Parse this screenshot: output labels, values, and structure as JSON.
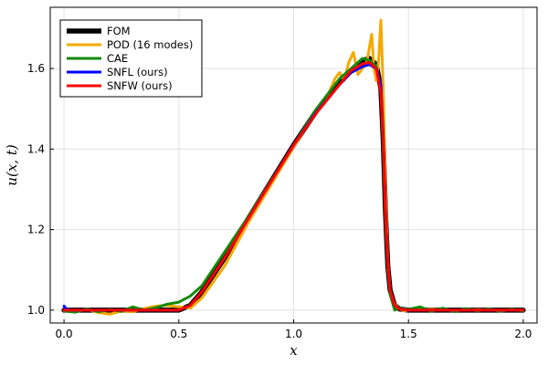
{
  "chart_data": {
    "type": "line",
    "xlabel": "x",
    "ylabel": "u(x, t)",
    "xlim": [
      -0.06,
      2.06
    ],
    "ylim": [
      0.968,
      1.752
    ],
    "xticks": [
      "0.0",
      "0.5",
      "1.0",
      "1.5",
      "2.0"
    ],
    "xtick_values": [
      0,
      0.5,
      1,
      1.5,
      2
    ],
    "yticks": [
      "1.0",
      "1.2",
      "1.4",
      "1.6"
    ],
    "ytick_values": [
      1.0,
      1.2,
      1.4,
      1.6
    ],
    "grid": true,
    "legend_position": "top-left",
    "series": [
      {
        "name": "FOM",
        "color": "#000000",
        "x": [
          0.0,
          0.5,
          0.55,
          0.6,
          0.7,
          0.8,
          0.9,
          1.0,
          1.1,
          1.2,
          1.25,
          1.3,
          1.33,
          1.36,
          1.38,
          1.39,
          1.4,
          1.41,
          1.42,
          1.44,
          1.46,
          1.5,
          2.0
        ],
        "y": [
          1.0,
          1.0,
          1.012,
          1.045,
          1.13,
          1.225,
          1.318,
          1.41,
          1.495,
          1.565,
          1.595,
          1.62,
          1.625,
          1.61,
          1.55,
          1.42,
          1.24,
          1.11,
          1.05,
          1.012,
          1.003,
          1.0,
          1.0
        ]
      },
      {
        "name": "POD (16 modes)",
        "color": "#f5a800",
        "x": [
          0.0,
          0.05,
          0.1,
          0.15,
          0.2,
          0.25,
          0.3,
          0.35,
          0.4,
          0.45,
          0.5,
          0.55,
          0.6,
          0.7,
          0.8,
          0.9,
          1.0,
          1.1,
          1.15,
          1.18,
          1.2,
          1.22,
          1.24,
          1.26,
          1.28,
          1.3,
          1.32,
          1.34,
          1.35,
          1.36,
          1.37,
          1.38,
          1.39,
          1.4,
          1.41,
          1.42,
          1.44,
          1.46,
          1.48,
          1.5,
          1.6,
          1.7,
          1.8,
          1.9,
          2.0
        ],
        "y": [
          1.0,
          0.996,
          1.002,
          0.994,
          0.99,
          0.998,
          0.996,
          1.004,
          1.01,
          1.012,
          1.008,
          1.005,
          1.03,
          1.11,
          1.215,
          1.31,
          1.405,
          1.495,
          1.535,
          1.575,
          1.59,
          1.57,
          1.615,
          1.64,
          1.585,
          1.6,
          1.62,
          1.685,
          1.6,
          1.57,
          1.62,
          1.72,
          1.55,
          1.3,
          1.12,
          1.05,
          1.015,
          1.003,
          0.998,
          1.0,
          1.002,
          0.999,
          1.001,
          1.0,
          1.0
        ]
      },
      {
        "name": "CAE",
        "color": "#138a07",
        "x": [
          0.0,
          0.05,
          0.1,
          0.15,
          0.2,
          0.25,
          0.3,
          0.35,
          0.4,
          0.45,
          0.5,
          0.55,
          0.6,
          0.7,
          0.8,
          0.9,
          1.0,
          1.1,
          1.2,
          1.25,
          1.3,
          1.33,
          1.36,
          1.38,
          1.39,
          1.4,
          1.41,
          1.42,
          1.44,
          1.46,
          1.5,
          1.55,
          1.6,
          1.65,
          1.7,
          1.75,
          1.8,
          1.85,
          1.9,
          1.95,
          2.0
        ],
        "y": [
          0.998,
          0.995,
          1.003,
          0.996,
          1.001,
          0.997,
          1.008,
          1.0,
          1.006,
          1.015,
          1.02,
          1.035,
          1.06,
          1.145,
          1.23,
          1.32,
          1.41,
          1.5,
          1.575,
          1.6,
          1.625,
          1.62,
          1.605,
          1.55,
          1.4,
          1.22,
          1.1,
          1.04,
          1.0,
          1.005,
          1.002,
          1.008,
          0.997,
          1.005,
          0.996,
          1.004,
          0.998,
          1.003,
          0.997,
          1.002,
          0.998
        ]
      },
      {
        "name": "SNFL (ours)",
        "color": "#0000ff",
        "x": [
          0.0,
          0.01,
          0.03,
          0.5,
          0.55,
          0.6,
          0.7,
          0.8,
          0.9,
          1.0,
          1.1,
          1.2,
          1.25,
          1.3,
          1.33,
          1.36,
          1.38,
          1.39,
          1.4,
          1.41,
          1.42,
          1.44,
          1.46,
          1.5,
          2.0
        ],
        "y": [
          1.01,
          1.003,
          1.0,
          1.0,
          1.012,
          1.045,
          1.13,
          1.225,
          1.318,
          1.41,
          1.492,
          1.56,
          1.59,
          1.605,
          1.61,
          1.6,
          1.56,
          1.43,
          1.25,
          1.11,
          1.05,
          1.012,
          1.003,
          1.0,
          1.0
        ]
      },
      {
        "name": "SNFW (ours)",
        "color": "#ff0000",
        "x": [
          0.0,
          0.5,
          0.55,
          0.6,
          0.7,
          0.8,
          0.9,
          1.0,
          1.1,
          1.2,
          1.25,
          1.3,
          1.33,
          1.36,
          1.38,
          1.39,
          1.4,
          1.41,
          1.42,
          1.44,
          1.46,
          1.5,
          2.0
        ],
        "y": [
          1.0,
          1.0,
          1.012,
          1.045,
          1.13,
          1.225,
          1.318,
          1.41,
          1.49,
          1.56,
          1.595,
          1.612,
          1.615,
          1.6,
          1.54,
          1.42,
          1.24,
          1.11,
          1.05,
          1.012,
          1.003,
          1.0,
          1.0
        ]
      }
    ]
  }
}
